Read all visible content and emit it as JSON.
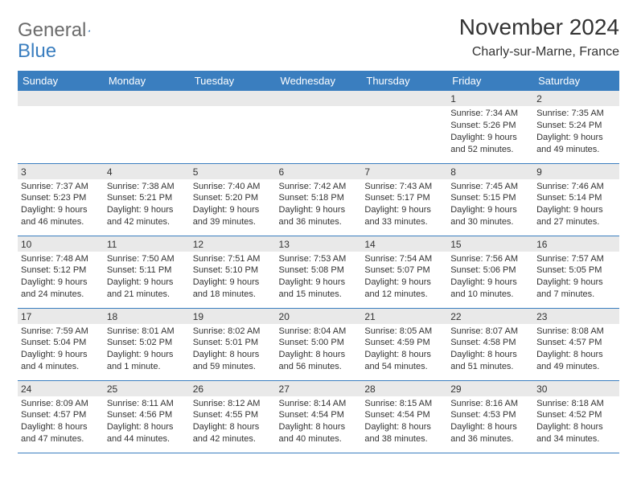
{
  "brand": {
    "part1": "General",
    "part2": "Blue",
    "text_color": "#6b6b6b",
    "accent_color": "#3a7ebf"
  },
  "title": {
    "month": "November 2024",
    "location": "Charly-sur-Marne, France"
  },
  "calendar": {
    "header_bg": "#3a7ebf",
    "header_fg": "#ffffff",
    "row_border": "#3a7ebf",
    "daynum_bg": "#e9e9e9",
    "text_color": "#333333",
    "font_size_body": 11,
    "days": [
      "Sunday",
      "Monday",
      "Tuesday",
      "Wednesday",
      "Thursday",
      "Friday",
      "Saturday"
    ],
    "weeks": [
      [
        null,
        null,
        null,
        null,
        null,
        {
          "n": "1",
          "sunrise": "Sunrise: 7:34 AM",
          "sunset": "Sunset: 5:26 PM",
          "day1": "Daylight: 9 hours",
          "day2": "and 52 minutes."
        },
        {
          "n": "2",
          "sunrise": "Sunrise: 7:35 AM",
          "sunset": "Sunset: 5:24 PM",
          "day1": "Daylight: 9 hours",
          "day2": "and 49 minutes."
        }
      ],
      [
        {
          "n": "3",
          "sunrise": "Sunrise: 7:37 AM",
          "sunset": "Sunset: 5:23 PM",
          "day1": "Daylight: 9 hours",
          "day2": "and 46 minutes."
        },
        {
          "n": "4",
          "sunrise": "Sunrise: 7:38 AM",
          "sunset": "Sunset: 5:21 PM",
          "day1": "Daylight: 9 hours",
          "day2": "and 42 minutes."
        },
        {
          "n": "5",
          "sunrise": "Sunrise: 7:40 AM",
          "sunset": "Sunset: 5:20 PM",
          "day1": "Daylight: 9 hours",
          "day2": "and 39 minutes."
        },
        {
          "n": "6",
          "sunrise": "Sunrise: 7:42 AM",
          "sunset": "Sunset: 5:18 PM",
          "day1": "Daylight: 9 hours",
          "day2": "and 36 minutes."
        },
        {
          "n": "7",
          "sunrise": "Sunrise: 7:43 AM",
          "sunset": "Sunset: 5:17 PM",
          "day1": "Daylight: 9 hours",
          "day2": "and 33 minutes."
        },
        {
          "n": "8",
          "sunrise": "Sunrise: 7:45 AM",
          "sunset": "Sunset: 5:15 PM",
          "day1": "Daylight: 9 hours",
          "day2": "and 30 minutes."
        },
        {
          "n": "9",
          "sunrise": "Sunrise: 7:46 AM",
          "sunset": "Sunset: 5:14 PM",
          "day1": "Daylight: 9 hours",
          "day2": "and 27 minutes."
        }
      ],
      [
        {
          "n": "10",
          "sunrise": "Sunrise: 7:48 AM",
          "sunset": "Sunset: 5:12 PM",
          "day1": "Daylight: 9 hours",
          "day2": "and 24 minutes."
        },
        {
          "n": "11",
          "sunrise": "Sunrise: 7:50 AM",
          "sunset": "Sunset: 5:11 PM",
          "day1": "Daylight: 9 hours",
          "day2": "and 21 minutes."
        },
        {
          "n": "12",
          "sunrise": "Sunrise: 7:51 AM",
          "sunset": "Sunset: 5:10 PM",
          "day1": "Daylight: 9 hours",
          "day2": "and 18 minutes."
        },
        {
          "n": "13",
          "sunrise": "Sunrise: 7:53 AM",
          "sunset": "Sunset: 5:08 PM",
          "day1": "Daylight: 9 hours",
          "day2": "and 15 minutes."
        },
        {
          "n": "14",
          "sunrise": "Sunrise: 7:54 AM",
          "sunset": "Sunset: 5:07 PM",
          "day1": "Daylight: 9 hours",
          "day2": "and 12 minutes."
        },
        {
          "n": "15",
          "sunrise": "Sunrise: 7:56 AM",
          "sunset": "Sunset: 5:06 PM",
          "day1": "Daylight: 9 hours",
          "day2": "and 10 minutes."
        },
        {
          "n": "16",
          "sunrise": "Sunrise: 7:57 AM",
          "sunset": "Sunset: 5:05 PM",
          "day1": "Daylight: 9 hours",
          "day2": "and 7 minutes."
        }
      ],
      [
        {
          "n": "17",
          "sunrise": "Sunrise: 7:59 AM",
          "sunset": "Sunset: 5:04 PM",
          "day1": "Daylight: 9 hours",
          "day2": "and 4 minutes."
        },
        {
          "n": "18",
          "sunrise": "Sunrise: 8:01 AM",
          "sunset": "Sunset: 5:02 PM",
          "day1": "Daylight: 9 hours",
          "day2": "and 1 minute."
        },
        {
          "n": "19",
          "sunrise": "Sunrise: 8:02 AM",
          "sunset": "Sunset: 5:01 PM",
          "day1": "Daylight: 8 hours",
          "day2": "and 59 minutes."
        },
        {
          "n": "20",
          "sunrise": "Sunrise: 8:04 AM",
          "sunset": "Sunset: 5:00 PM",
          "day1": "Daylight: 8 hours",
          "day2": "and 56 minutes."
        },
        {
          "n": "21",
          "sunrise": "Sunrise: 8:05 AM",
          "sunset": "Sunset: 4:59 PM",
          "day1": "Daylight: 8 hours",
          "day2": "and 54 minutes."
        },
        {
          "n": "22",
          "sunrise": "Sunrise: 8:07 AM",
          "sunset": "Sunset: 4:58 PM",
          "day1": "Daylight: 8 hours",
          "day2": "and 51 minutes."
        },
        {
          "n": "23",
          "sunrise": "Sunrise: 8:08 AM",
          "sunset": "Sunset: 4:57 PM",
          "day1": "Daylight: 8 hours",
          "day2": "and 49 minutes."
        }
      ],
      [
        {
          "n": "24",
          "sunrise": "Sunrise: 8:09 AM",
          "sunset": "Sunset: 4:57 PM",
          "day1": "Daylight: 8 hours",
          "day2": "and 47 minutes."
        },
        {
          "n": "25",
          "sunrise": "Sunrise: 8:11 AM",
          "sunset": "Sunset: 4:56 PM",
          "day1": "Daylight: 8 hours",
          "day2": "and 44 minutes."
        },
        {
          "n": "26",
          "sunrise": "Sunrise: 8:12 AM",
          "sunset": "Sunset: 4:55 PM",
          "day1": "Daylight: 8 hours",
          "day2": "and 42 minutes."
        },
        {
          "n": "27",
          "sunrise": "Sunrise: 8:14 AM",
          "sunset": "Sunset: 4:54 PM",
          "day1": "Daylight: 8 hours",
          "day2": "and 40 minutes."
        },
        {
          "n": "28",
          "sunrise": "Sunrise: 8:15 AM",
          "sunset": "Sunset: 4:54 PM",
          "day1": "Daylight: 8 hours",
          "day2": "and 38 minutes."
        },
        {
          "n": "29",
          "sunrise": "Sunrise: 8:16 AM",
          "sunset": "Sunset: 4:53 PM",
          "day1": "Daylight: 8 hours",
          "day2": "and 36 minutes."
        },
        {
          "n": "30",
          "sunrise": "Sunrise: 8:18 AM",
          "sunset": "Sunset: 4:52 PM",
          "day1": "Daylight: 8 hours",
          "day2": "and 34 minutes."
        }
      ]
    ]
  }
}
